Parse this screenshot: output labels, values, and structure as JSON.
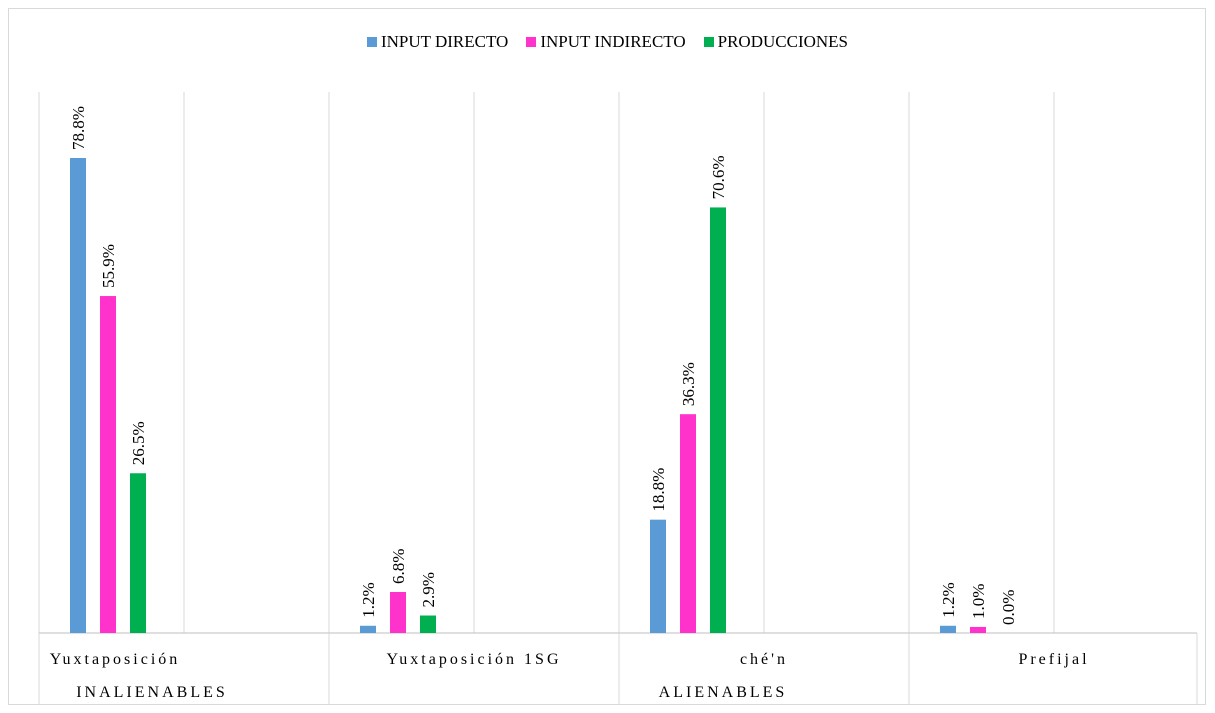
{
  "chart_data": {
    "type": "bar",
    "categories": [
      "Yuxtaposición",
      "Yuxtaposición 1SG",
      "ché'n",
      "Prefijal"
    ],
    "groups": [
      {
        "label": "INALIENABLES",
        "categories": [
          "Yuxtaposición"
        ]
      },
      {
        "label": "ALIENABLES",
        "categories": [
          "Yuxtaposición 1SG",
          "ché'n",
          "Prefijal"
        ]
      }
    ],
    "series": [
      {
        "name": "INPUT DIRECTO",
        "color": "#5b9bd5",
        "values": [
          78.8,
          1.2,
          18.8,
          1.2
        ],
        "labels": [
          "78.8%",
          "1.2%",
          "18.8%",
          "1.2%"
        ]
      },
      {
        "name": "INPUT INDIRECTO",
        "color": "#ff33cc",
        "values": [
          55.9,
          6.8,
          36.3,
          1.0
        ],
        "labels": [
          "55.9%",
          "6.8%",
          "36.3%",
          "1.0%"
        ]
      },
      {
        "name": "PRODUCCIONES",
        "color": "#00b050",
        "values": [
          26.5,
          2.9,
          70.6,
          0.0
        ],
        "labels": [
          "26.5%",
          "2.9%",
          "70.6%",
          "0.0%"
        ]
      }
    ],
    "ylim": [
      0,
      90
    ],
    "legend_position": "top",
    "grid": "vertical"
  }
}
